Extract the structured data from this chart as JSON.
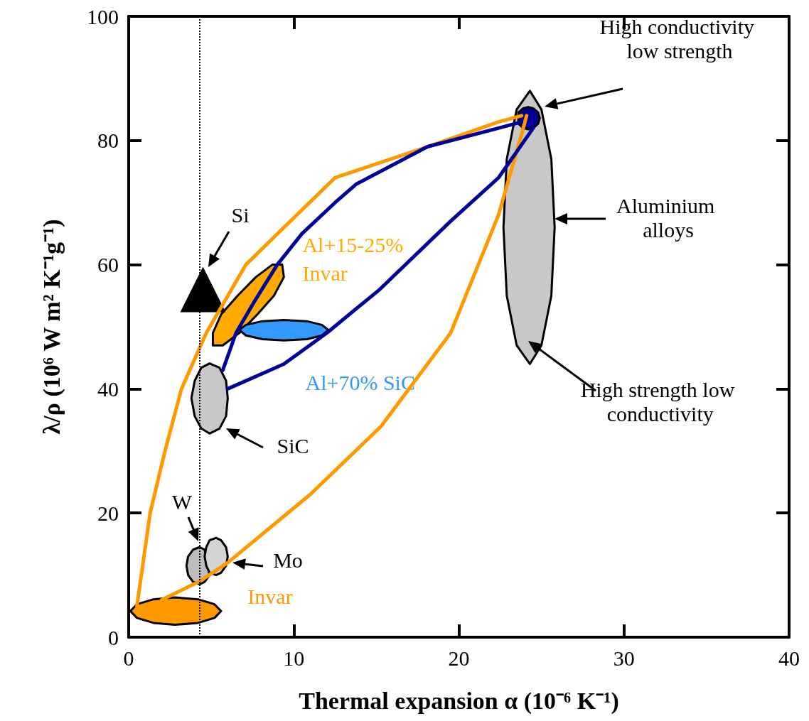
{
  "chart_data": {
    "type": "line",
    "xlabel": "Thermal expansion α (10⁻⁶ K⁻¹)",
    "ylabel": "λ/ρ (10⁶ W m² K⁻¹g⁻¹)",
    "xlim": [
      0,
      40
    ],
    "ylim": [
      0,
      100
    ],
    "xticks": [
      0,
      10,
      20,
      30,
      40
    ],
    "yticks": [
      0,
      20,
      40,
      60,
      80,
      100
    ],
    "grid": false,
    "line_style": "solid",
    "ref_lines": [
      {
        "axis": "x",
        "value": 4.3,
        "line_style": "dotted",
        "color": "#000000"
      }
    ],
    "annotations": [
      "Si",
      "SiC",
      "W",
      "Mo",
      "High conductivity low strength",
      "Aluminium alloys",
      "High strength low conductivity"
    ],
    "series": [
      {
        "type": "area",
        "color": "#c8c8c8",
        "x": [
          25.8,
          25.6,
          25.0,
          24.3,
          23.5,
          22.9,
          22.7,
          22.9,
          23.5,
          24.3,
          25.0,
          25.6
        ],
        "values": [
          66,
          77,
          85,
          88,
          85,
          77,
          66,
          55,
          47,
          44,
          47,
          55
        ]
      },
      {
        "color": "#ff9900",
        "x": [
          0.5,
          1.3,
          2.2,
          3.2,
          4.7,
          7.1,
          9.4,
          12.5,
          18.1,
          22.4,
          23.8
        ],
        "values": [
          5,
          20,
          30,
          40,
          49,
          60,
          66,
          74,
          79,
          83,
          84
        ]
      },
      {
        "color": "#ff9900",
        "x": [
          2.0,
          4.3,
          6.0,
          11.0,
          15.3,
          19.5,
          22.4,
          23.8,
          24.1
        ],
        "values": [
          6,
          9,
          12,
          23,
          34,
          49,
          68,
          81,
          84
        ]
      },
      {
        "color": "#000099",
        "x": [
          5.7,
          6.5,
          7.6,
          9.0,
          10.5,
          12.5,
          13.8,
          18.1,
          22.4,
          23.8
        ],
        "values": [
          43,
          49,
          54,
          60,
          65,
          70,
          73,
          79,
          82,
          83
        ]
      },
      {
        "color": "#000099",
        "x": [
          6.0,
          9.4,
          12.0,
          15.2,
          19.5,
          22.4,
          24.5
        ],
        "values": [
          40,
          44,
          49,
          56,
          67,
          74,
          82
        ]
      },
      {
        "type": "area",
        "name": "Invar",
        "color": "#ff9900",
        "x": [
          5.6,
          5.2,
          4.2,
          2.8,
          1.5,
          0.5,
          0.1,
          0.5,
          1.5,
          2.8,
          4.2,
          5.2
        ],
        "values": [
          4.2,
          5.3,
          6.1,
          6.4,
          6.1,
          5.3,
          4.2,
          3.1,
          2.3,
          2.0,
          2.3,
          3.1
        ]
      },
      {
        "type": "area",
        "name": "Al+15-25% Invar",
        "color": "#ffaa00",
        "x": [
          9.3,
          9.4,
          8.8,
          7.8,
          6.7,
          5.7,
          5.1,
          5.1,
          5.6,
          6.6,
          7.7,
          8.7
        ],
        "values": [
          60,
          58,
          55,
          52,
          49,
          47,
          47,
          49,
          52,
          55,
          58,
          60
        ]
      },
      {
        "type": "area",
        "name": "Al+70% SiC",
        "color": "#3399ff",
        "x": [
          12.1,
          11.7,
          10.8,
          9.4,
          8.1,
          7.1,
          6.7,
          7.1,
          8.1,
          9.4,
          10.8,
          11.7
        ],
        "values": [
          49.5,
          50.3,
          50.9,
          51.1,
          50.9,
          50.3,
          49.5,
          48.6,
          48.0,
          47.8,
          48.0,
          48.6
        ]
      },
      {
        "type": "area",
        "color": "#c8c8c8",
        "x": [
          6.0,
          5.9,
          5.5,
          4.9,
          4.4,
          4.0,
          3.8,
          4.0,
          4.4,
          4.9,
          5.5,
          5.9
        ],
        "values": [
          38.5,
          41.3,
          43.4,
          44.1,
          43.4,
          41.3,
          38.5,
          35.6,
          33.6,
          32.8,
          33.6,
          35.6
        ]
      },
      {
        "type": "area",
        "color": "#bdbdbd",
        "x": [
          4.6,
          4.3,
          3.9,
          3.6,
          3.5,
          3.6,
          3.9,
          4.3,
          4.6,
          4.9
        ],
        "values": [
          14.1,
          14.5,
          14.1,
          13.0,
          11.5,
          10.0,
          8.9,
          8.5,
          8.9,
          10.0
        ]
      },
      {
        "type": "area",
        "color": "#d4d4d4",
        "x": [
          6.0,
          5.9,
          5.6,
          5.3,
          4.9,
          4.7,
          4.6,
          4.7,
          4.9,
          5.3,
          5.6,
          5.9
        ],
        "values": [
          13.0,
          14.5,
          15.6,
          16.0,
          15.6,
          14.5,
          13.0,
          11.5,
          10.4,
          10.0,
          10.4,
          11.5
        ]
      },
      {
        "type": "area",
        "color": "#000099",
        "x": [
          24.9,
          24.8,
          24.5,
          24.2,
          23.9,
          23.6,
          23.6,
          23.6,
          23.9,
          24.2,
          24.5,
          24.8
        ],
        "values": [
          83.6,
          84.5,
          85.2,
          85.4,
          85.2,
          84.5,
          83.6,
          82.7,
          82.0,
          81.8,
          82.0,
          82.7
        ]
      },
      {
        "type": "scatter",
        "marker": "triangle",
        "color": "#000000",
        "x": [
          4.5
        ],
        "values": [
          56
        ]
      }
    ]
  }
}
